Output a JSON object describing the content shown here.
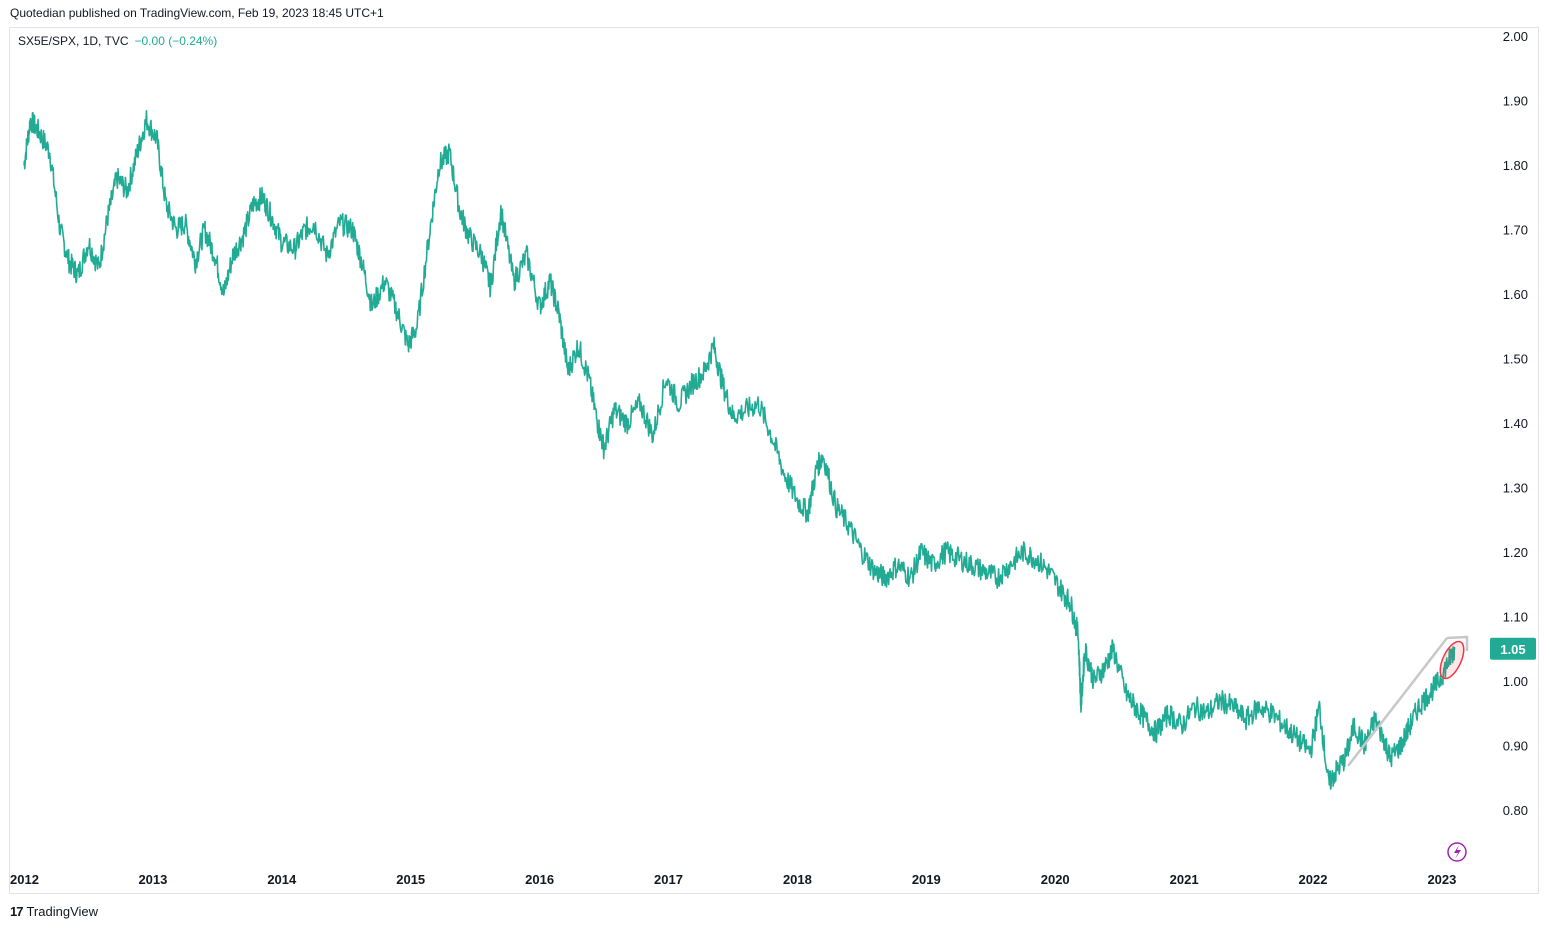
{
  "attribution": "Quotedian published on TradingView.com, Feb 19, 2023 18:45 UTC+1",
  "legend": {
    "symbol": "SX5E/SPX, 1D, TVC",
    "change": "−0.00 (−0.24%)"
  },
  "footer": {
    "logo": "17",
    "brand": "TradingView"
  },
  "colors": {
    "line": "#22ab94",
    "price_label_bg": "#22ab94",
    "trend_arrow": "#c8c8c8",
    "ellipse": "#f23645",
    "bolt": "#9c27b0"
  },
  "chart_data": {
    "type": "line",
    "ylim": [
      0.73,
      2.02
    ],
    "y_ticks": [
      "2.00",
      "1.90",
      "1.80",
      "1.70",
      "1.60",
      "1.50",
      "1.40",
      "1.30",
      "1.20",
      "1.10",
      "1.00",
      "0.90",
      "0.80"
    ],
    "x_ticks": [
      "2012",
      "2013",
      "2014",
      "2015",
      "2016",
      "2017",
      "2018",
      "2019",
      "2020",
      "2021",
      "2022",
      "2023"
    ],
    "last_value_label": "1.05",
    "series": [
      {
        "x": [
          2012.0,
          2012.05,
          2012.12,
          2012.2,
          2012.28,
          2012.35,
          2012.42,
          2012.5,
          2012.58,
          2012.65,
          2012.72,
          2012.8,
          2012.88,
          2012.95,
          2013.03,
          2013.1,
          2013.18,
          2013.25,
          2013.33,
          2013.4,
          2013.48,
          2013.55,
          2013.62,
          2013.7,
          2013.78,
          2013.85,
          2013.92,
          2014.0,
          2014.1,
          2014.18,
          2014.25,
          2014.35,
          2014.45,
          2014.55,
          2014.62,
          2014.7,
          2014.8,
          2014.9,
          2014.98,
          2015.05,
          2015.15,
          2015.22,
          2015.3,
          2015.38,
          2015.45,
          2015.55,
          2015.62,
          2015.7,
          2015.8,
          2015.9,
          2016.0,
          2016.08,
          2016.15,
          2016.22,
          2016.3,
          2016.38,
          2016.45,
          2016.5,
          2016.58,
          2016.68,
          2016.78,
          2016.88,
          2016.98,
          2017.08,
          2017.18,
          2017.28,
          2017.35,
          2017.42,
          2017.5,
          2017.6,
          2017.7,
          2017.8,
          2017.9,
          2018.0,
          2018.08,
          2018.15,
          2018.2,
          2018.3,
          2018.4,
          2018.5,
          2018.6,
          2018.68,
          2018.78,
          2018.88,
          2018.96,
          2019.05,
          2019.15,
          2019.25,
          2019.35,
          2019.45,
          2019.55,
          2019.65,
          2019.75,
          2019.85,
          2019.95,
          2020.05,
          2020.12,
          2020.18,
          2020.2,
          2020.23,
          2020.3,
          2020.38,
          2020.45,
          2020.55,
          2020.62,
          2020.7,
          2020.78,
          2020.88,
          2020.98,
          2021.08,
          2021.18,
          2021.28,
          2021.38,
          2021.48,
          2021.58,
          2021.68,
          2021.78,
          2021.88,
          2021.98,
          2022.05,
          2022.12,
          2022.18,
          2022.25,
          2022.32,
          2022.4,
          2022.48,
          2022.55,
          2022.6,
          2022.68,
          2022.75,
          2022.82,
          2022.9,
          2022.98,
          2023.05,
          2023.1
        ],
        "y": [
          1.8,
          1.87,
          1.85,
          1.82,
          1.7,
          1.65,
          1.63,
          1.68,
          1.64,
          1.72,
          1.78,
          1.76,
          1.82,
          1.87,
          1.84,
          1.74,
          1.7,
          1.71,
          1.65,
          1.7,
          1.66,
          1.6,
          1.66,
          1.69,
          1.74,
          1.75,
          1.72,
          1.68,
          1.67,
          1.7,
          1.71,
          1.66,
          1.71,
          1.7,
          1.65,
          1.58,
          1.62,
          1.57,
          1.52,
          1.55,
          1.7,
          1.8,
          1.82,
          1.73,
          1.69,
          1.66,
          1.61,
          1.73,
          1.62,
          1.66,
          1.58,
          1.62,
          1.57,
          1.48,
          1.52,
          1.47,
          1.4,
          1.36,
          1.42,
          1.4,
          1.43,
          1.38,
          1.47,
          1.43,
          1.46,
          1.48,
          1.52,
          1.46,
          1.41,
          1.42,
          1.43,
          1.38,
          1.32,
          1.28,
          1.26,
          1.33,
          1.35,
          1.27,
          1.24,
          1.2,
          1.17,
          1.16,
          1.18,
          1.16,
          1.2,
          1.18,
          1.2,
          1.19,
          1.18,
          1.17,
          1.16,
          1.18,
          1.2,
          1.19,
          1.17,
          1.14,
          1.12,
          1.07,
          0.96,
          1.05,
          1.0,
          1.02,
          1.05,
          0.98,
          0.96,
          0.94,
          0.92,
          0.95,
          0.93,
          0.96,
          0.95,
          0.97,
          0.96,
          0.94,
          0.96,
          0.95,
          0.93,
          0.91,
          0.89,
          0.96,
          0.84,
          0.86,
          0.88,
          0.93,
          0.9,
          0.94,
          0.91,
          0.88,
          0.9,
          0.93,
          0.96,
          0.98,
          1.0,
          1.03,
          1.05
        ]
      }
    ],
    "annotations": [
      "trend-arrow",
      "highlight-ellipse",
      "lightning-icon"
    ]
  }
}
